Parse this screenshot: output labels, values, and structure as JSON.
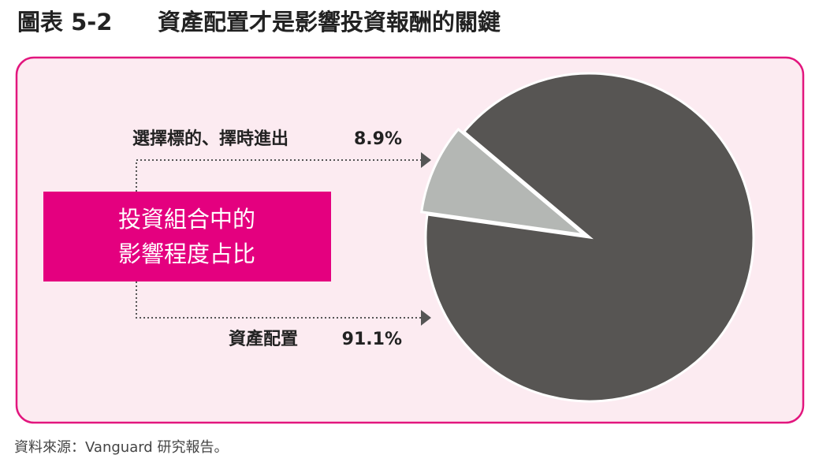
{
  "chart_data": {
    "type": "pie",
    "figure_label": "圖表 5-2",
    "title": "資產配置才是影響投資報酬的關鍵",
    "center_label": [
      "投資組合中的",
      "影響程度占比"
    ],
    "categories": [
      "選擇標的、擇時進出",
      "資產配置"
    ],
    "values": [
      8.9,
      91.1
    ],
    "value_labels": [
      "8.9%",
      "91.1%"
    ],
    "colors": [
      "#b4b7b4",
      "#575553"
    ],
    "source": "資料來源：Vanguard 研究報告。"
  }
}
